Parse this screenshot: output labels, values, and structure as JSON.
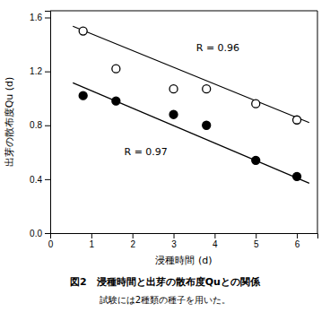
{
  "chart_data": {
    "type": "scatter",
    "title": "図2　浸種時間と出芽の散布度Quとの関係",
    "subtitle": "試験には2種類の種子を用いた。",
    "xlabel": "浸種時間 (d)",
    "ylabel": "出芽の散布度Qu (d)",
    "xlim": [
      0,
      6.5
    ],
    "ylim": [
      0.0,
      1.65
    ],
    "xticks": [
      0,
      1,
      2,
      3,
      4,
      5,
      6
    ],
    "yticks": [
      {
        "value": 0.0,
        "label": "0.0"
      },
      0.4,
      0.8,
      1.2,
      1.6
    ],
    "series": [
      {
        "type": "line",
        "color": "#000000",
        "x": [
          0.55,
          6.3
        ],
        "values": [
          1.535,
          0.82
        ]
      },
      {
        "type": "line",
        "color": "#000000",
        "x": [
          0.55,
          6.3
        ],
        "values": [
          1.115,
          0.37
        ]
      },
      {
        "type": "scatter",
        "marker": "circle-open",
        "color": "#000000",
        "x": [
          0.8,
          1.6,
          3.0,
          3.8,
          5.0,
          6.0
        ],
        "values": [
          1.5,
          1.22,
          1.07,
          1.07,
          0.96,
          0.84
        ]
      },
      {
        "type": "scatter",
        "marker": "circle",
        "color": "#000000",
        "x": [
          0.8,
          1.6,
          3.0,
          3.8,
          5.0,
          6.0
        ],
        "values": [
          1.02,
          0.98,
          0.88,
          0.8,
          0.54,
          0.42
        ]
      }
    ],
    "annotations": [
      {
        "text": "R = 0.96",
        "x": 3.55,
        "y": 1.35
      },
      {
        "text": "R = 0.97",
        "x": 1.8,
        "y": 0.58
      }
    ]
  }
}
